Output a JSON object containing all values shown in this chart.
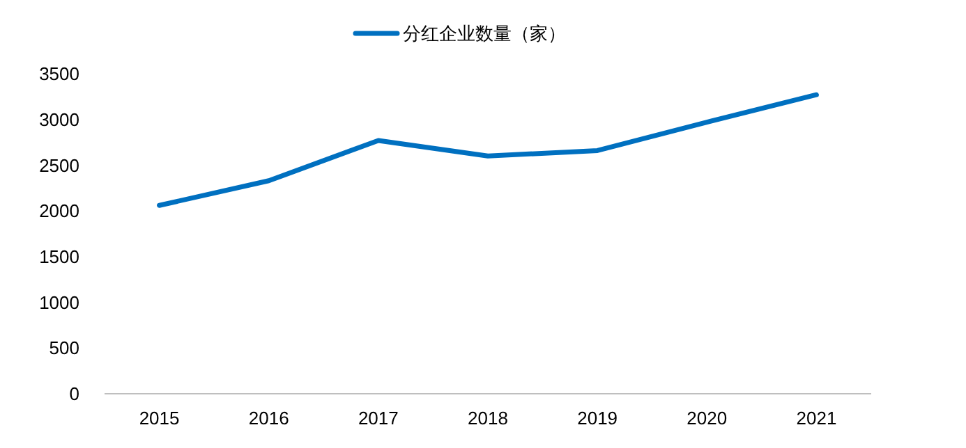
{
  "chart_data": {
    "type": "line",
    "categories": [
      "2015",
      "2016",
      "2017",
      "2018",
      "2019",
      "2020",
      "2021"
    ],
    "series": [
      {
        "name": "分红企业数量（家）",
        "color": "#0070c0",
        "values": [
          2060,
          2330,
          2770,
          2600,
          2660,
          2970,
          3270
        ]
      }
    ],
    "ylim": [
      0,
      3500
    ],
    "yticks": [
      0,
      500,
      1000,
      1500,
      2000,
      2500,
      3000,
      3500
    ],
    "grid": false,
    "legend": "top",
    "marker": "none",
    "line_style": "solid"
  }
}
